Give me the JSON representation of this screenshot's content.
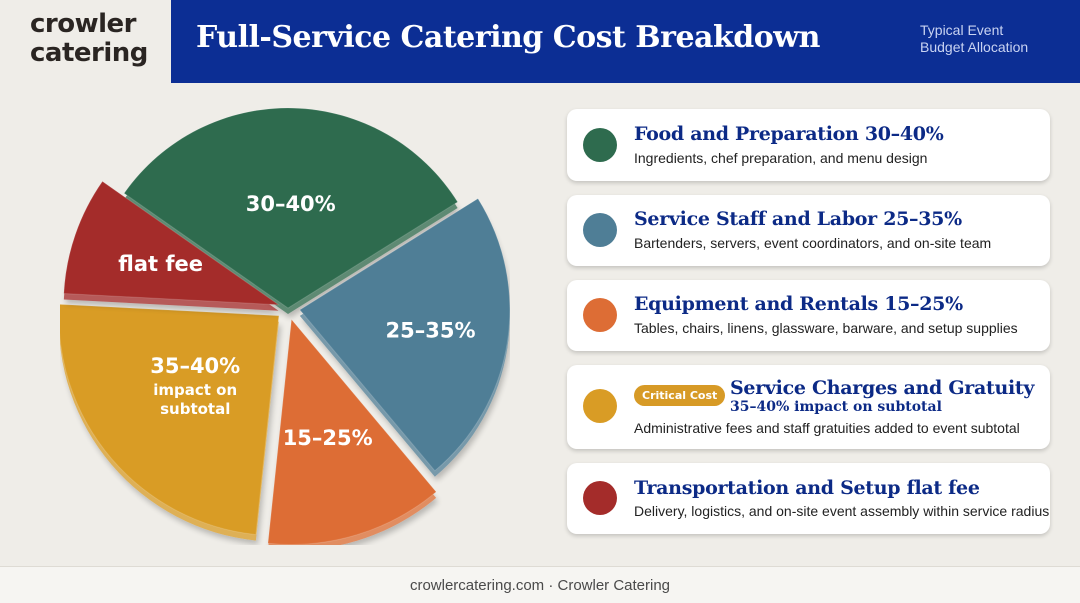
{
  "brand": {
    "line1": "crowler",
    "line2": "catering"
  },
  "header": {
    "title": "Full-Service Catering Cost Breakdown",
    "subtitle_line1": "Typical Event",
    "subtitle_line2": "Budget Allocation"
  },
  "colors": {
    "header_bg": "#0c2e94",
    "food": "#2e6b4e",
    "staff": "#4f7e96",
    "equipment": "#dd6d35",
    "service": "#d99c25",
    "transport": "#a42c2a"
  },
  "chart_data": {
    "type": "pie",
    "title": "",
    "slices": [
      {
        "name": "Food and Preparation",
        "label": "30–40%",
        "range": [
          30,
          40
        ],
        "color": "#2e6b4e"
      },
      {
        "name": "Service Staff and Labor",
        "label": "25–35%",
        "range": [
          25,
          35
        ],
        "color": "#4f7e96"
      },
      {
        "name": "Equipment and Rentals",
        "label": "15–25%",
        "range": [
          15,
          25
        ],
        "color": "#dd6d35"
      },
      {
        "name": "Service Charges and Gratuity",
        "label": "35–40%",
        "label_sub1": "impact on",
        "label_sub2": "subtotal",
        "range": [
          35,
          40
        ],
        "color": "#d99c25"
      },
      {
        "name": "Transportation and Setup",
        "label": "flat fee",
        "range": null,
        "color": "#a42c2a"
      }
    ]
  },
  "cards": [
    {
      "title": "Food and Preparation 30–40%",
      "desc": "Ingredients, chef preparation, and menu design",
      "color": "#2e6b4e"
    },
    {
      "title": "Service Staff and Labor 25–35%",
      "desc": "Bartenders, servers, event coordinators, and on-site team",
      "color": "#4f7e96"
    },
    {
      "title": "Equipment and Rentals 15–25%",
      "desc": "Tables, chairs, linens, glassware, barware, and setup supplies",
      "color": "#dd6d35"
    },
    {
      "badge": "Critical Cost",
      "title": "Service Charges and Gratuity",
      "subtitle": "35–40% impact on subtotal",
      "desc": "Administrative fees and staff gratuities added to event subtotal",
      "color": "#d99c25"
    },
    {
      "title": "Transportation and Setup flat fee",
      "desc": "Delivery, logistics, and on-site event assembly within service radius",
      "color": "#a42c2a"
    }
  ],
  "footer": {
    "text": "crowlercatering.com · Crowler Catering"
  }
}
